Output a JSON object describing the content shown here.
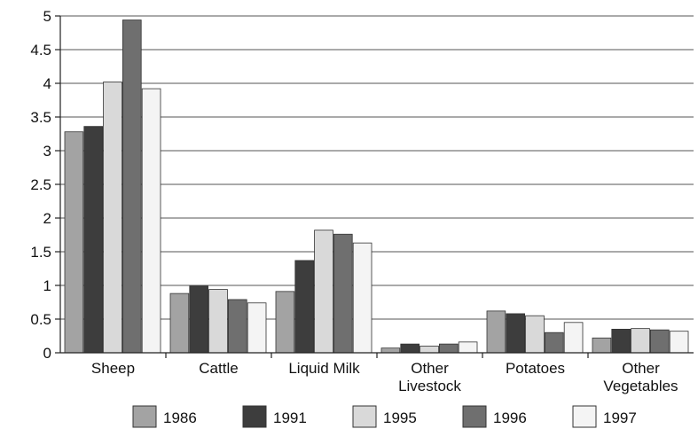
{
  "chart_data": {
    "type": "bar",
    "categories": [
      [
        "Sheep"
      ],
      [
        "Cattle"
      ],
      [
        "Liquid Milk"
      ],
      [
        "Other",
        "Livestock"
      ],
      [
        "Potatoes"
      ],
      [
        "Other",
        "Vegetables"
      ]
    ],
    "series": [
      {
        "name": "1986",
        "color": "#a3a3a3",
        "values": [
          3.28,
          0.88,
          0.91,
          0.07,
          0.62,
          0.22
        ]
      },
      {
        "name": "1991",
        "color": "#3d3d3d",
        "values": [
          3.36,
          0.99,
          1.37,
          0.13,
          0.58,
          0.35
        ]
      },
      {
        "name": "1995",
        "color": "#d9d9d9",
        "values": [
          4.02,
          0.94,
          1.82,
          0.1,
          0.55,
          0.36
        ]
      },
      {
        "name": "1996",
        "color": "#6f6f6f",
        "values": [
          4.94,
          0.79,
          1.76,
          0.13,
          0.3,
          0.34
        ]
      },
      {
        "name": "1997",
        "color": "#f4f4f4",
        "values": [
          3.92,
          0.74,
          1.63,
          0.16,
          0.45,
          0.32
        ]
      }
    ],
    "y_ticks": [
      "0",
      "0.5",
      "1",
      "1.5",
      "2",
      "2.5",
      "3",
      "3.5",
      "4",
      "4.5",
      "5"
    ],
    "ylim": [
      0,
      5
    ],
    "grid": true,
    "legend_position": "bottom"
  }
}
